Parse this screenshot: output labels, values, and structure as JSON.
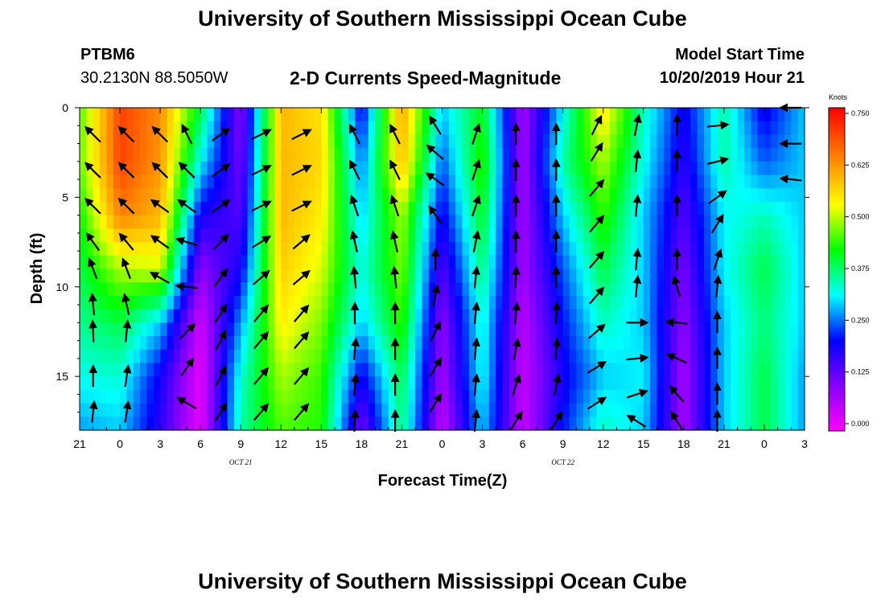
{
  "header": {
    "title": "University of Southern Mississippi Ocean Cube",
    "station_id": "PTBM6",
    "station_coords": "30.2130N 88.5050W",
    "chart_title": "2-D Currents Speed-Magnitude",
    "model_start_label": "Model Start Time",
    "model_start_value": "10/20/2019 Hour 21"
  },
  "footer": {
    "title": "University of Southern Mississippi Ocean Cube"
  },
  "chart_data": {
    "type": "heatmap",
    "title": "2-D Currents Speed-Magnitude",
    "xlabel": "Forecast Time(Z)",
    "ylabel": "Depth (ft)",
    "x_tick_labels": [
      "21",
      "0",
      "3",
      "6",
      "9",
      "12",
      "15",
      "18",
      "21",
      "0",
      "3",
      "6",
      "9",
      "12",
      "15",
      "18",
      "21",
      "0",
      "3"
    ],
    "x_date_labels": [
      {
        "text": "OCT 21",
        "tick_index": 4
      },
      {
        "text": "OCT 22",
        "tick_index": 12
      }
    ],
    "x_hours_range": [
      0,
      54
    ],
    "y_tick_labels": [
      "0",
      "5",
      "10",
      "15"
    ],
    "y_tick_values": [
      0,
      5,
      10,
      15
    ],
    "ylim": [
      0,
      18
    ],
    "y_inverted": true,
    "colorbar": {
      "label": "Knots",
      "tick_labels": [
        "0.750",
        "0.625",
        "0.500",
        "0.375",
        "0.250",
        "0.125",
        "0.000"
      ],
      "vmin": 0.0,
      "vmax": 0.75,
      "colors": [
        "#ff00ff",
        "#8800ff",
        "#0000ff",
        "#00ffff",
        "#00ff00",
        "#ffff00",
        "#ff8800",
        "#ff0000"
      ]
    },
    "depth_levels": [
      0,
      3,
      6,
      9,
      12,
      15,
      18
    ],
    "speed_profiles": [
      {
        "hour": 0,
        "values": [
          0.46,
          0.47,
          0.43,
          0.4,
          0.37,
          0.33,
          0.28
        ]
      },
      {
        "hour": 3,
        "values": [
          0.7,
          0.7,
          0.65,
          0.5,
          0.4,
          0.34,
          0.3
        ]
      },
      {
        "hour": 6,
        "values": [
          0.64,
          0.63,
          0.6,
          0.52,
          0.3,
          0.2,
          0.18
        ]
      },
      {
        "hour": 9,
        "values": [
          0.4,
          0.32,
          0.2,
          0.1,
          0.04,
          0.02,
          0.02
        ]
      },
      {
        "hour": 12,
        "values": [
          0.1,
          0.12,
          0.15,
          0.2,
          0.28,
          0.34,
          0.36
        ]
      },
      {
        "hour": 15,
        "values": [
          0.6,
          0.6,
          0.6,
          0.58,
          0.55,
          0.5,
          0.46
        ]
      },
      {
        "hour": 18,
        "values": [
          0.56,
          0.57,
          0.55,
          0.52,
          0.48,
          0.45,
          0.44
        ]
      },
      {
        "hour": 21,
        "values": [
          0.2,
          0.26,
          0.3,
          0.33,
          0.3,
          0.2,
          0.12
        ]
      },
      {
        "hour": 24,
        "values": [
          0.62,
          0.6,
          0.5,
          0.48,
          0.45,
          0.4,
          0.38
        ]
      },
      {
        "hour": 27,
        "values": [
          0.3,
          0.25,
          0.2,
          0.15,
          0.1,
          0.08,
          0.05
        ]
      },
      {
        "hour": 30,
        "values": [
          0.42,
          0.45,
          0.42,
          0.38,
          0.34,
          0.33,
          0.3
        ]
      },
      {
        "hour": 33,
        "values": [
          0.08,
          0.08,
          0.08,
          0.08,
          0.06,
          0.05,
          0.05
        ]
      },
      {
        "hour": 36,
        "values": [
          0.32,
          0.36,
          0.3,
          0.25,
          0.22,
          0.2,
          0.22
        ]
      },
      {
        "hour": 39,
        "values": [
          0.56,
          0.5,
          0.45,
          0.4,
          0.35,
          0.3,
          0.35
        ]
      },
      {
        "hour": 42,
        "values": [
          0.35,
          0.33,
          0.3,
          0.3,
          0.3,
          0.32,
          0.3
        ]
      },
      {
        "hour": 45,
        "values": [
          0.2,
          0.18,
          0.15,
          0.12,
          0.1,
          0.08,
          0.08
        ]
      },
      {
        "hour": 48,
        "values": [
          0.36,
          0.36,
          0.32,
          0.32,
          0.3,
          0.3,
          0.3
        ]
      },
      {
        "hour": 51,
        "values": [
          0.2,
          0.25,
          0.35,
          0.4,
          0.38,
          0.4,
          0.4
        ]
      },
      {
        "hour": 54,
        "values": [
          0.3,
          0.3,
          0.3,
          0.3,
          0.3,
          0.28,
          0.28
        ]
      }
    ],
    "vectors": [
      {
        "hour": 1,
        "depths": [
          1.5,
          3.5,
          5.5,
          7.5,
          9,
          11,
          12.5,
          15,
          17
        ],
        "u": [
          -0.6,
          -0.6,
          -0.6,
          -0.5,
          -0.3,
          -0.1,
          -0.05,
          0.0,
          0.1
        ],
        "v": [
          0.6,
          0.6,
          0.6,
          0.7,
          0.8,
          1,
          1,
          1,
          1
        ]
      },
      {
        "hour": 3.5,
        "depths": [
          1.5,
          3.5,
          5.5,
          7.5,
          9,
          11,
          12.5,
          15,
          17
        ],
        "u": [
          -0.6,
          -0.6,
          -0.6,
          -0.5,
          -0.3,
          -0.2,
          0.1,
          0.15,
          0.15
        ],
        "v": [
          0.6,
          0.6,
          0.6,
          0.6,
          0.8,
          0.9,
          1,
          1,
          1
        ]
      },
      {
        "hour": 6,
        "depths": [
          1.5,
          3.5,
          5.5,
          7.5,
          9.5
        ],
        "u": [
          -0.6,
          -0.6,
          -0.7,
          -0.7,
          -0.7
        ],
        "v": [
          0.6,
          0.6,
          0.5,
          0.5,
          0.4
        ]
      },
      {
        "hour": 8,
        "depths": [
          1.5,
          3.5,
          5.5,
          7.5,
          10,
          12.5,
          14.5,
          16.5
        ],
        "u": [
          -0.4,
          -0.6,
          -0.7,
          -1,
          -1,
          0.6,
          0.5,
          -0.7
        ],
        "v": [
          0.8,
          0.6,
          0.5,
          0.3,
          0.1,
          0.6,
          0.7,
          0.4
        ]
      },
      {
        "hour": 10.5,
        "depths": [
          1.5,
          3.5,
          5.5,
          7.5,
          9.5,
          11.5,
          13,
          15,
          17
        ],
        "u": [
          0.7,
          0.7,
          0.7,
          0.6,
          0.5,
          0.5,
          0.4,
          0.4,
          0.5
        ],
        "v": [
          0.5,
          0.5,
          0.5,
          0.6,
          0.7,
          0.8,
          0.8,
          0.8,
          0.8
        ]
      },
      {
        "hour": 13.5,
        "depths": [
          1.5,
          3.5,
          5.5,
          7.5,
          9.5,
          11.5,
          13,
          15,
          17
        ],
        "u": [
          0.8,
          0.8,
          0.8,
          0.8,
          0.7,
          0.6,
          0.6,
          0.6,
          0.6
        ],
        "v": [
          0.4,
          0.4,
          0.4,
          0.5,
          0.6,
          0.7,
          0.7,
          0.7,
          0.7
        ]
      },
      {
        "hour": 16.5,
        "depths": [
          1.5,
          3.5,
          5.5,
          7.5,
          9.5,
          11.5,
          13,
          15,
          17
        ],
        "u": [
          0.8,
          0.8,
          0.8,
          0.7,
          0.7,
          0.6,
          0.6,
          0.6,
          0.6
        ],
        "v": [
          0.4,
          0.4,
          0.4,
          0.6,
          0.6,
          0.7,
          0.7,
          0.7,
          0.7
        ]
      },
      {
        "hour": 20.5,
        "depths": [
          1.5,
          3.5,
          5.5,
          7.5,
          9.5,
          11.5,
          13.5,
          15.5,
          17.5
        ],
        "u": [
          -0.4,
          -0.4,
          -0.3,
          -0.2,
          -0.1,
          0.0,
          0.1,
          0.1,
          0.05
        ],
        "v": [
          0.8,
          0.8,
          0.9,
          0.9,
          1,
          1,
          1,
          1,
          1
        ]
      },
      {
        "hour": 23.5,
        "depths": [
          1.5,
          3.5,
          5.5,
          7.5,
          9.5,
          11.5,
          13.5,
          15.5,
          17.5
        ],
        "u": [
          -0.4,
          -0.4,
          -0.3,
          -0.2,
          -0.1,
          0.0,
          0.0,
          0.0,
          0.0
        ],
        "v": [
          0.8,
          0.8,
          0.9,
          0.9,
          1,
          1,
          1,
          1,
          1
        ]
      },
      {
        "hour": 26.5,
        "depths": [
          1,
          2.5,
          4,
          6,
          8.5,
          10.5,
          12.5,
          14.5,
          16.5
        ],
        "u": [
          -0.5,
          -0.7,
          -0.7,
          -0.5,
          0.0,
          0.2,
          0.4,
          0.5,
          0.5
        ],
        "v": [
          0.8,
          0.6,
          0.5,
          0.7,
          1,
          1,
          0.8,
          0.8,
          0.8
        ]
      },
      {
        "hour": 29.5,
        "depths": [
          1.5,
          3.5,
          5.5,
          7.5,
          9.5,
          11.5,
          13.5,
          15.5,
          17.5
        ],
        "u": [
          0.3,
          0.3,
          0.3,
          0.2,
          0.1,
          0.1,
          0.1,
          0.1,
          0.1
        ],
        "v": [
          0.9,
          0.9,
          0.9,
          1,
          1,
          1,
          1,
          1,
          1
        ]
      },
      {
        "hour": 32.5,
        "depths": [
          1.5,
          3.5,
          5.5,
          7.5,
          9.5,
          11.5,
          13.5,
          15.5,
          17.5
        ],
        "u": [
          0,
          0,
          0,
          0,
          0.05,
          0.1,
          0.2,
          0.3,
          0.5
        ],
        "v": [
          1,
          1,
          1,
          1,
          1,
          1,
          1,
          0.9,
          0.8
        ]
      },
      {
        "hour": 35.5,
        "depths": [
          1.5,
          3.5,
          5.5,
          7.5,
          9.5,
          11.5,
          13.5,
          15.5,
          17.5
        ],
        "u": [
          0,
          0,
          0,
          0,
          0,
          0.05,
          0.1,
          0.2,
          0.5
        ],
        "v": [
          1,
          1,
          1,
          1,
          1,
          1,
          1,
          1,
          0.8
        ]
      },
      {
        "hour": 38.5,
        "depths": [
          1,
          2.5,
          4.5,
          6.5,
          8.5,
          10.5,
          12.5,
          14.5,
          16.5
        ],
        "u": [
          0.4,
          0.5,
          0.6,
          0.6,
          0.6,
          0.6,
          0.7,
          0.8,
          0.8
        ],
        "v": [
          0.8,
          0.8,
          0.7,
          0.7,
          0.7,
          0.7,
          0.6,
          0.5,
          0.5
        ]
      },
      {
        "hour": 41.5,
        "depths": [
          1,
          3,
          5.5,
          8.5,
          10,
          12,
          14,
          16,
          17.5
        ],
        "u": [
          0.2,
          0.1,
          0.1,
          0.1,
          0.1,
          1,
          1,
          0.9,
          -0.8
        ],
        "v": [
          1,
          1,
          1,
          1,
          1,
          0,
          0.1,
          0.3,
          0.5
        ]
      },
      {
        "hour": 44.5,
        "depths": [
          1,
          3,
          5.5,
          8.5,
          10,
          12,
          14,
          16,
          17.5
        ],
        "u": [
          0,
          0,
          0,
          0,
          -0.3,
          -1,
          -0.9,
          -0.6,
          -0.5
        ],
        "v": [
          1,
          1,
          1,
          1,
          1,
          0.1,
          0.4,
          0.7,
          0.8
        ]
      },
      {
        "hour": 47.5,
        "depths": [
          1,
          3,
          5,
          6.5,
          8.5,
          10,
          12,
          14,
          16,
          17.5
        ],
        "u": [
          0.9,
          0.8,
          0.7,
          0.5,
          0.3,
          0.1,
          0.0,
          0.0,
          0.0,
          0.0
        ],
        "v": [
          0.1,
          0.2,
          0.5,
          0.8,
          0.9,
          1,
          1,
          1,
          1,
          1
        ]
      },
      {
        "hour": 53,
        "depths": [
          0,
          2,
          4
        ],
        "u": [
          -1,
          -1,
          -1
        ],
        "v": [
          0,
          0,
          0.1
        ]
      }
    ]
  }
}
